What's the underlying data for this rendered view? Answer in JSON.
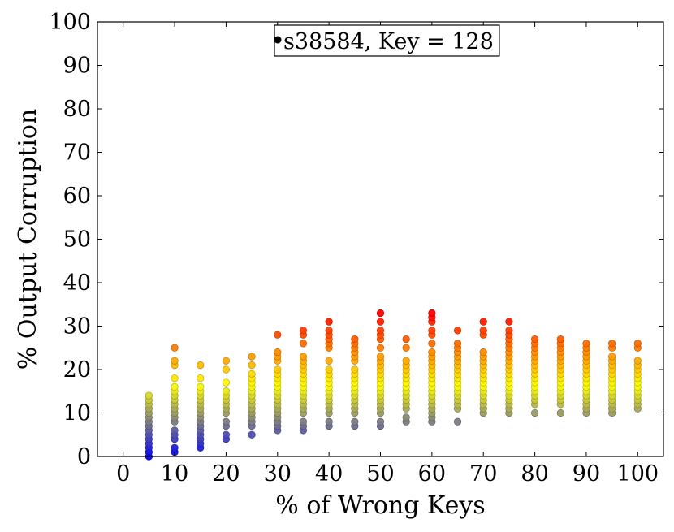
{
  "chart_data": {
    "type": "scatter",
    "title": "",
    "xlabel": "% of Wrong Keys",
    "ylabel": "% Output Corruption",
    "xlim": [
      -5,
      105
    ],
    "ylim": [
      0,
      100
    ],
    "xticks": [
      0,
      10,
      20,
      30,
      40,
      50,
      60,
      70,
      80,
      90,
      100
    ],
    "yticks": [
      0,
      10,
      20,
      30,
      40,
      50,
      60,
      70,
      80,
      90,
      100
    ],
    "grid": false,
    "legend": {
      "position": "top-center",
      "entries": [
        "s38584, Key = 128"
      ]
    },
    "colormap": {
      "low": "#0000ff",
      "mid": "#ffff00",
      "high": "#ff0000",
      "vmin": 0,
      "vmax": 33
    },
    "series": [
      {
        "name": "s38584, Key = 128",
        "points": [
          {
            "x": 5,
            "y": [
              0,
              1,
              2,
              3,
              4,
              5,
              6,
              7,
              8,
              9,
              10,
              11,
              12,
              13,
              14
            ]
          },
          {
            "x": 10,
            "y": [
              1,
              2,
              4,
              5,
              6,
              8,
              9,
              10,
              11,
              12,
              13,
              14,
              15,
              16,
              18,
              21,
              22,
              25
            ]
          },
          {
            "x": 15,
            "y": [
              2,
              3,
              4,
              5,
              6,
              7,
              8,
              9,
              10,
              11,
              12,
              13,
              14,
              15,
              16,
              18,
              21
            ]
          },
          {
            "x": 20,
            "y": [
              4,
              5,
              7,
              8,
              10,
              11,
              12,
              13,
              14,
              15,
              17,
              20,
              22
            ]
          },
          {
            "x": 25,
            "y": [
              5,
              7,
              8,
              9,
              10,
              11,
              12,
              13,
              14,
              15,
              16,
              17,
              18,
              19,
              21,
              23
            ]
          },
          {
            "x": 30,
            "y": [
              6,
              7,
              8,
              9,
              10,
              11,
              12,
              13,
              14,
              15,
              16,
              17,
              18,
              19,
              20,
              22,
              23,
              24,
              28
            ]
          },
          {
            "x": 35,
            "y": [
              6,
              7,
              8,
              10,
              11,
              12,
              13,
              14,
              15,
              16,
              17,
              18,
              19,
              20,
              21,
              22,
              23,
              26,
              28,
              29
            ]
          },
          {
            "x": 40,
            "y": [
              7,
              8,
              10,
              11,
              12,
              13,
              14,
              15,
              16,
              17,
              18,
              19,
              20,
              22,
              25,
              26,
              27,
              28,
              29,
              31
            ]
          },
          {
            "x": 45,
            "y": [
              7,
              8,
              10,
              11,
              12,
              13,
              14,
              15,
              16,
              17,
              18,
              19,
              20,
              22,
              23,
              24,
              25,
              26,
              27
            ]
          },
          {
            "x": 50,
            "y": [
              7,
              8,
              10,
              11,
              12,
              13,
              14,
              15,
              16,
              17,
              18,
              19,
              20,
              21,
              22,
              23,
              25,
              27,
              28,
              29,
              31,
              33
            ]
          },
          {
            "x": 55,
            "y": [
              8,
              9,
              11,
              12,
              13,
              14,
              15,
              16,
              17,
              18,
              19,
              20,
              21,
              22,
              25,
              27
            ]
          },
          {
            "x": 60,
            "y": [
              8,
              9,
              10,
              11,
              12,
              13,
              14,
              15,
              16,
              17,
              18,
              19,
              20,
              21,
              22,
              23,
              24,
              26,
              28,
              29,
              31,
              32,
              33
            ]
          },
          {
            "x": 65,
            "y": [
              8,
              11,
              12,
              13,
              14,
              15,
              16,
              17,
              18,
              19,
              20,
              21,
              22,
              23,
              24,
              25,
              26,
              29
            ]
          },
          {
            "x": 70,
            "y": [
              10,
              11,
              12,
              13,
              14,
              15,
              16,
              17,
              18,
              19,
              20,
              21,
              22,
              23,
              24,
              28,
              29,
              31
            ]
          },
          {
            "x": 75,
            "y": [
              10,
              11,
              12,
              13,
              14,
              15,
              16,
              17,
              18,
              19,
              20,
              21,
              22,
              23,
              24,
              25,
              26,
              27,
              28,
              29,
              31
            ]
          },
          {
            "x": 80,
            "y": [
              10,
              12,
              13,
              14,
              15,
              16,
              17,
              18,
              19,
              20,
              21,
              22,
              23,
              24,
              25,
              26,
              27
            ]
          },
          {
            "x": 85,
            "y": [
              10,
              12,
              13,
              14,
              15,
              16,
              17,
              18,
              19,
              20,
              21,
              22,
              23,
              24,
              25,
              26,
              27
            ]
          },
          {
            "x": 90,
            "y": [
              10,
              11,
              12,
              13,
              14,
              15,
              16,
              17,
              18,
              19,
              20,
              21,
              22,
              23,
              24,
              25,
              26
            ]
          },
          {
            "x": 95,
            "y": [
              10,
              11,
              12,
              13,
              14,
              15,
              16,
              17,
              18,
              19,
              20,
              21,
              22,
              23,
              25,
              26
            ]
          },
          {
            "x": 100,
            "y": [
              11,
              12,
              13,
              14,
              15,
              16,
              17,
              18,
              19,
              20,
              21,
              22,
              25,
              26
            ]
          }
        ]
      }
    ]
  }
}
